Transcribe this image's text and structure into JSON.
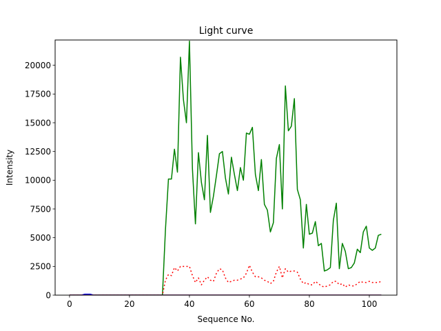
{
  "chart_data": {
    "type": "line",
    "title": "Light curve",
    "xlabel": "Sequence No.",
    "ylabel": "Intensity",
    "xlim": [
      -4.8,
      109.2
    ],
    "ylim": [
      0,
      22200
    ],
    "xticks": [
      0,
      20,
      40,
      60,
      80,
      100
    ],
    "yticks": [
      0,
      2500,
      5000,
      7500,
      10000,
      12500,
      15000,
      17500,
      20000
    ],
    "grid": false,
    "x": [
      0,
      1,
      2,
      3,
      4,
      5,
      6,
      7,
      8,
      9,
      10,
      11,
      12,
      13,
      14,
      15,
      16,
      17,
      18,
      19,
      20,
      21,
      22,
      23,
      24,
      25,
      26,
      27,
      28,
      29,
      30,
      31,
      32,
      33,
      34,
      35,
      36,
      37,
      38,
      39,
      40,
      41,
      42,
      43,
      44,
      45,
      46,
      47,
      48,
      49,
      50,
      51,
      52,
      53,
      54,
      55,
      56,
      57,
      58,
      59,
      60,
      61,
      62,
      63,
      64,
      65,
      66,
      67,
      68,
      69,
      70,
      71,
      72,
      73,
      74,
      75,
      76,
      77,
      78,
      79,
      80,
      81,
      82,
      83,
      84,
      85,
      86,
      87,
      88,
      89,
      90,
      91,
      92,
      93,
      94,
      95,
      96,
      97,
      98,
      99,
      100,
      101,
      102,
      103,
      104
    ],
    "series": [
      {
        "color": "#008000",
        "style": "solid",
        "values": [
          0,
          0,
          0,
          0,
          0,
          0,
          0,
          0,
          0,
          0,
          0,
          0,
          0,
          0,
          0,
          0,
          0,
          0,
          0,
          0,
          0,
          0,
          0,
          0,
          0,
          0,
          0,
          0,
          0,
          0,
          0,
          0,
          5700,
          10100,
          10100,
          12700,
          10700,
          20700,
          17000,
          15000,
          22100,
          11000,
          6200,
          12400,
          9800,
          8300,
          13900,
          7200,
          8600,
          10400,
          12300,
          12500,
          10200,
          8800,
          12000,
          10500,
          9100,
          11100,
          10000,
          14100,
          14000,
          14600,
          10500,
          9100,
          11800,
          7900,
          7400,
          5500,
          6300,
          11900,
          13100,
          7500,
          18200,
          14300,
          14700,
          17100,
          9200,
          8300,
          4100,
          7900,
          5300,
          5400,
          6400,
          4300,
          4500,
          2100,
          2200,
          2400,
          6500,
          8000,
          2300,
          4500,
          3800,
          2300,
          2400,
          2800,
          4000,
          3700,
          5500,
          6000,
          4100,
          3900,
          4100,
          5200,
          5300
        ]
      },
      {
        "color": "#ff0000",
        "style": "dotted",
        "values": [
          0,
          0,
          0,
          0,
          0,
          0,
          0,
          0,
          0,
          0,
          0,
          0,
          0,
          0,
          0,
          0,
          0,
          0,
          0,
          0,
          0,
          0,
          0,
          0,
          0,
          0,
          0,
          0,
          0,
          0,
          0,
          0,
          1300,
          1800,
          1700,
          2400,
          2100,
          2500,
          2500,
          2500,
          2500,
          1700,
          1100,
          1500,
          900,
          1300,
          1600,
          1300,
          1200,
          1900,
          2300,
          2200,
          1500,
          1100,
          1200,
          1300,
          1300,
          1400,
          1500,
          1900,
          2600,
          2000,
          1600,
          1600,
          1500,
          1300,
          1200,
          1000,
          1200,
          2000,
          2500,
          1500,
          2300,
          2000,
          2100,
          2100,
          2000,
          1400,
          1000,
          1100,
          900,
          900,
          1200,
          1000,
          800,
          700,
          800,
          900,
          1200,
          1200,
          900,
          1000,
          700,
          900,
          800,
          800,
          1000,
          1200,
          1100,
          1100,
          1200,
          1100,
          1100,
          1100,
          1200
        ]
      },
      {
        "color": "#0000ff",
        "style": "solid",
        "values": [
          0,
          0,
          0,
          0,
          0,
          80,
          80,
          80,
          0,
          0,
          0,
          0,
          0,
          0,
          0,
          0,
          0,
          0,
          0,
          0,
          0,
          0,
          0,
          0,
          0,
          0,
          0,
          0,
          0,
          0,
          0,
          0,
          0,
          0,
          0,
          0,
          0,
          0,
          0,
          0,
          0,
          0,
          0,
          0,
          0,
          0,
          0,
          0,
          0,
          0,
          0,
          0,
          0,
          0,
          0,
          0,
          0,
          0,
          0,
          0,
          0,
          0,
          0,
          0,
          0,
          0,
          0,
          0,
          0,
          0,
          0,
          0,
          0,
          0,
          0,
          0,
          0,
          0,
          0,
          0,
          0,
          0,
          0,
          0,
          0,
          0,
          0,
          0,
          0,
          0,
          0,
          0,
          0,
          0,
          0,
          0,
          0,
          0,
          0,
          0,
          0,
          0,
          0,
          0,
          0
        ]
      },
      {
        "color": "#8b0000",
        "style": "solid",
        "values": [
          0,
          0,
          0,
          0,
          0,
          0,
          0,
          0,
          0,
          0,
          0,
          0,
          0,
          0,
          0,
          0,
          0,
          0,
          0,
          0,
          0,
          0,
          0,
          0,
          0,
          0,
          0,
          0,
          0,
          0,
          0,
          0,
          0,
          0,
          0,
          0,
          0,
          0,
          0,
          0,
          0,
          0,
          0,
          0,
          0,
          0,
          0,
          0,
          0,
          0,
          0,
          0,
          0,
          0,
          0,
          0,
          0,
          0,
          0,
          0,
          0,
          0,
          0,
          0,
          0,
          0,
          0,
          0,
          0,
          0,
          0,
          0,
          0,
          0,
          0,
          0,
          0,
          0,
          0,
          0,
          0,
          0,
          0,
          0,
          0,
          0,
          0,
          0,
          0,
          0,
          0,
          0,
          0,
          0,
          0,
          0,
          0,
          0,
          0,
          0,
          0,
          0,
          0,
          0,
          0
        ]
      }
    ]
  }
}
